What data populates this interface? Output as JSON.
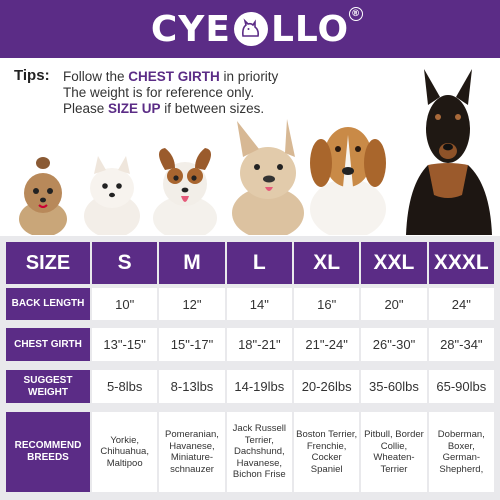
{
  "brand": {
    "name_left": "CYE",
    "name_right": "LLO",
    "registered": "®"
  },
  "tips": {
    "label": "Tips:",
    "line1_prefix": "Follow the ",
    "line1_highlight": "CHEST GIRTH",
    "line1_suffix": " in priority",
    "line2": "The weight is for reference only.",
    "line3_prefix": "Please ",
    "line3_highlight": "SIZE UP",
    "line3_suffix": " if between sizes."
  },
  "colors": {
    "accent": "#5b2c86",
    "table_bg": "#e9e9ec"
  },
  "table": {
    "size_header": "SIZE",
    "sizes": [
      "S",
      "M",
      "L",
      "XL",
      "XXL",
      "XXXL"
    ],
    "back_length": {
      "label": "BACK  LENGTH",
      "values": [
        "10\"",
        "12\"",
        "14\"",
        "16\"",
        "20\"",
        "24\""
      ]
    },
    "chest_girth": {
      "label": "CHEST GIRTH",
      "values": [
        "13\"-15\"",
        "15\"-17\"",
        "18\"-21\"",
        "21\"-24\"",
        "26\"-30\"",
        "28\"-34\""
      ]
    },
    "suggest_weight": {
      "label": "SUGGEST WEIGHT",
      "values": [
        "5-8lbs",
        "8-13lbs",
        "14-19lbs",
        "20-26lbs",
        "35-60lbs",
        "65-90lbs"
      ]
    },
    "recommend_breeds": {
      "label": "RECOMMEND BREEDS",
      "values": [
        "Yorkie, Chihuahua, Maltipoo",
        "Pomeranian, Havanese, Miniature-schnauzer",
        "Jack Russell Terrier, Dachshund, Havanese, Bichon Frise",
        "Boston Terrier, Frenchie, Cocker Spaniel",
        "Pitbull, Border Collie, Wheaten-Terrier",
        "Doberman, Boxer, German-Shepherd,"
      ]
    }
  }
}
